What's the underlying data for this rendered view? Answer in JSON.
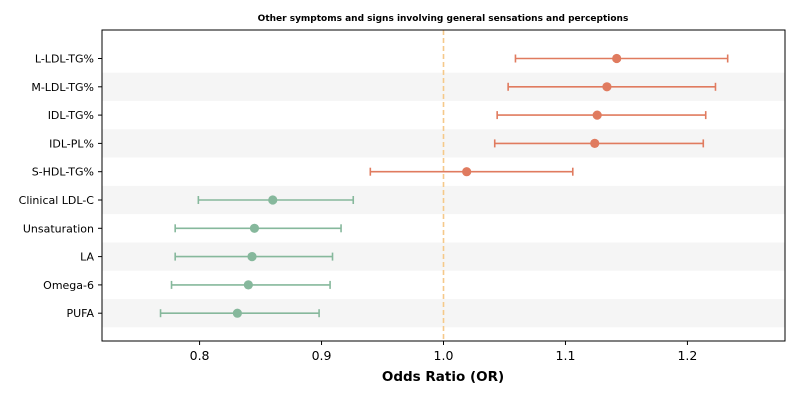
{
  "chart_data": {
    "type": "forest",
    "title": "Other symptoms and signs involving general sensations and perceptions",
    "xlabel": "Odds Ratio (OR)",
    "ylabel": "",
    "xlim": [
      0.72,
      1.28
    ],
    "xticks": [
      0.8,
      0.9,
      1.0,
      1.1,
      1.2
    ],
    "xtick_labels": [
      "0.8",
      "0.9",
      "1.0",
      "1.1",
      "1.2"
    ],
    "reference_line": 1.0,
    "reference_color": "#f5c98a",
    "colors": {
      "risk": "#e07b5f",
      "protective": "#86b89c",
      "band": "#f5f5f5"
    },
    "rows": [
      {
        "label": "L-LDL-TG%",
        "or": 1.142,
        "lo": 1.059,
        "hi": 1.233,
        "group": "risk"
      },
      {
        "label": "M-LDL-TG%",
        "or": 1.134,
        "lo": 1.053,
        "hi": 1.223,
        "group": "risk"
      },
      {
        "label": "IDL-TG%",
        "or": 1.126,
        "lo": 1.044,
        "hi": 1.215,
        "group": "risk"
      },
      {
        "label": "IDL-PL%",
        "or": 1.124,
        "lo": 1.042,
        "hi": 1.213,
        "group": "risk"
      },
      {
        "label": "S-HDL-TG%",
        "or": 1.019,
        "lo": 0.94,
        "hi": 1.106,
        "group": "risk"
      },
      {
        "label": "Clinical LDL-C",
        "or": 0.86,
        "lo": 0.799,
        "hi": 0.926,
        "group": "protective"
      },
      {
        "label": "Unsaturation",
        "or": 0.845,
        "lo": 0.78,
        "hi": 0.916,
        "group": "protective"
      },
      {
        "label": "LA",
        "or": 0.843,
        "lo": 0.78,
        "hi": 0.909,
        "group": "protective"
      },
      {
        "label": "Omega-6",
        "or": 0.84,
        "lo": 0.777,
        "hi": 0.907,
        "group": "protective"
      },
      {
        "label": "PUFA",
        "or": 0.831,
        "lo": 0.768,
        "hi": 0.898,
        "group": "protective"
      }
    ]
  }
}
